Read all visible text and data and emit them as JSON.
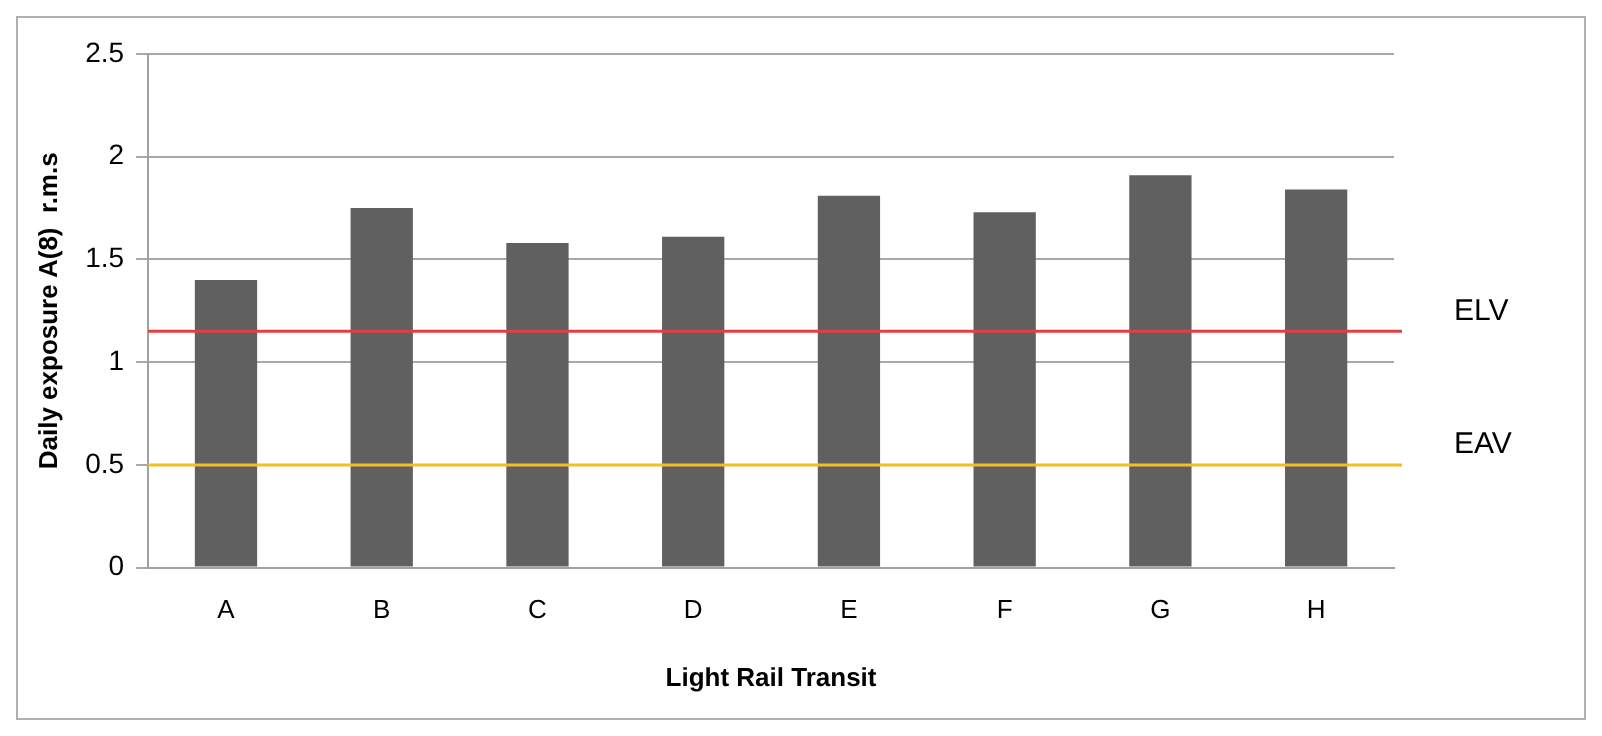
{
  "chart_data": {
    "type": "bar",
    "xlabel": "Light Rail Transit",
    "ylabel": "Daily exposure A(8)  r.m.s",
    "categories": [
      "A",
      "B",
      "C",
      "D",
      "E",
      "F",
      "G",
      "H"
    ],
    "values": [
      1.4,
      1.75,
      1.58,
      1.61,
      1.81,
      1.73,
      1.91,
      1.84
    ],
    "color": "#606060",
    "ylim": [
      0,
      2.5
    ],
    "yticks": [
      0,
      0.5,
      1,
      1.5,
      2,
      2.5
    ],
    "grid": "y",
    "ref_lines": [
      {
        "axis": "y",
        "value": 1.15,
        "label": "ELV",
        "color": "#e04040"
      },
      {
        "axis": "y",
        "value": 0.5,
        "label": "EAV",
        "color": "#f0c020"
      }
    ]
  }
}
